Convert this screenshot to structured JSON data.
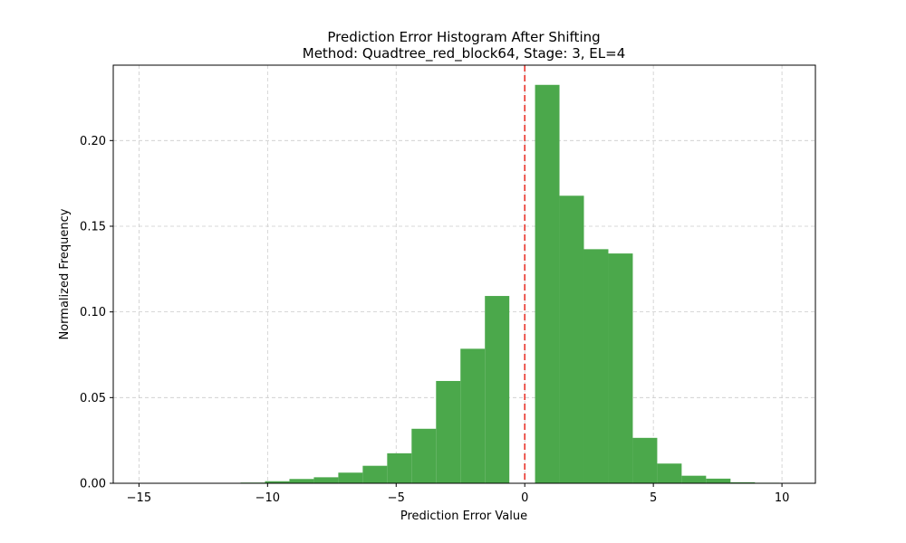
{
  "chart_data": {
    "type": "bar",
    "title": "Prediction Error Histogram After Shifting",
    "subtitle": "Method: Quadtree_red_block64, Stage: 3, EL=4",
    "xlabel": "Prediction Error Value",
    "ylabel": "Normalized Frequency",
    "xlim": [
      -16.0,
      11.3
    ],
    "ylim": [
      0,
      0.244
    ],
    "xticks": [
      -15,
      -10,
      -5,
      0,
      5,
      10
    ],
    "xtick_labels": [
      "−15",
      "−10",
      "−5",
      "0",
      "5",
      "10"
    ],
    "yticks": [
      0.0,
      0.05,
      0.1,
      0.15,
      0.2
    ],
    "ytick_labels": [
      "0.00",
      "0.05",
      "0.10",
      "0.15",
      "0.20"
    ],
    "grid": true,
    "bar_color": "#4ba84b",
    "reference_line": {
      "x": 0,
      "color": "#e8342b",
      "style": "dashed"
    },
    "bins": [
      {
        "x0": -12.0,
        "x1": -11.05,
        "value": 0.0002
      },
      {
        "x0": -11.05,
        "x1": -10.1,
        "value": 0.0004
      },
      {
        "x0": -10.1,
        "x1": -9.15,
        "value": 0.0012
      },
      {
        "x0": -9.15,
        "x1": -8.2,
        "value": 0.0025
      },
      {
        "x0": -8.2,
        "x1": -7.25,
        "value": 0.0035
      },
      {
        "x0": -7.25,
        "x1": -6.3,
        "value": 0.0062
      },
      {
        "x0": -6.3,
        "x1": -5.35,
        "value": 0.0102
      },
      {
        "x0": -5.35,
        "x1": -4.4,
        "value": 0.0175
      },
      {
        "x0": -4.4,
        "x1": -3.45,
        "value": 0.0318
      },
      {
        "x0": -3.45,
        "x1": -2.5,
        "value": 0.0597
      },
      {
        "x0": -2.5,
        "x1": -1.55,
        "value": 0.0785
      },
      {
        "x0": -1.55,
        "x1": -0.6,
        "value": 0.1093
      },
      {
        "x0": 0.4,
        "x1": 1.35,
        "value": 0.2325
      },
      {
        "x0": 1.35,
        "x1": 2.3,
        "value": 0.1678
      },
      {
        "x0": 2.3,
        "x1": 3.25,
        "value": 0.1366
      },
      {
        "x0": 3.25,
        "x1": 4.2,
        "value": 0.1341
      },
      {
        "x0": 4.2,
        "x1": 5.15,
        "value": 0.0265
      },
      {
        "x0": 5.15,
        "x1": 6.1,
        "value": 0.0115
      },
      {
        "x0": 6.1,
        "x1": 7.05,
        "value": 0.0044
      },
      {
        "x0": 7.05,
        "x1": 8.0,
        "value": 0.0027
      },
      {
        "x0": 8.0,
        "x1": 8.95,
        "value": 0.0006
      },
      {
        "x0": 8.95,
        "x1": 9.9,
        "value": 0.0003
      }
    ]
  }
}
